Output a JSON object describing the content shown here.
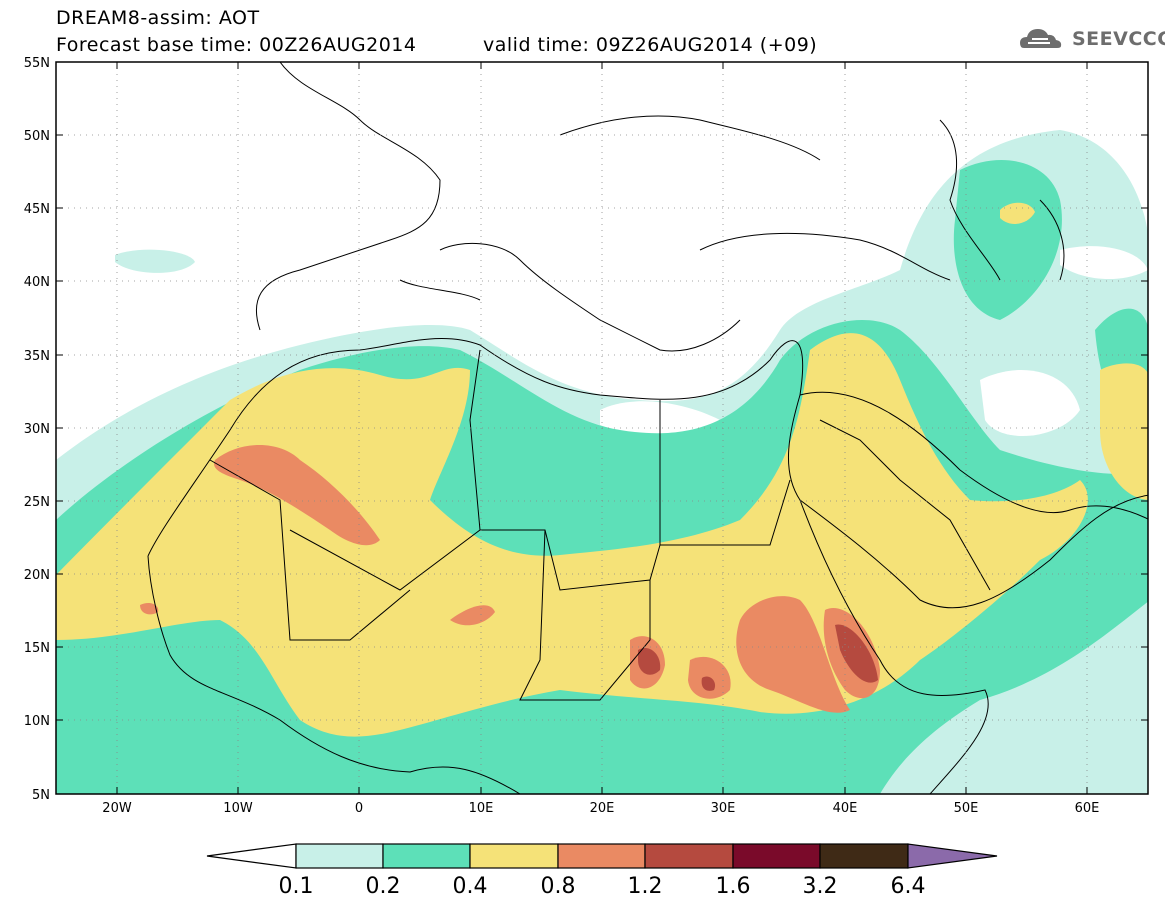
{
  "header": {
    "line1": "DREAM8-assim: AOT",
    "line2": "Forecast base time: 00Z26AUG2014",
    "line3": "valid time: 09Z26AUG2014 (+09)"
  },
  "logo": {
    "text": "SEEVCCC"
  },
  "map": {
    "lon_range": [
      -25,
      65
    ],
    "lat_range": [
      5,
      55
    ],
    "lat_labels": [
      "55N",
      "50N",
      "45N",
      "40N",
      "35N",
      "30N",
      "25N",
      "20N",
      "15N",
      "10N",
      "5N"
    ],
    "lon_labels": [
      "20W",
      "10W",
      "0",
      "10E",
      "20E",
      "30E",
      "40E",
      "50E",
      "60E"
    ]
  },
  "colorbar": {
    "ticks": [
      "0.1",
      "0.2",
      "0.4",
      "0.8",
      "1.2",
      "1.6",
      "3.2",
      "6.4"
    ],
    "colors": [
      "#ffffff",
      "#c8f0e8",
      "#5de0b8",
      "#f5e278",
      "#ea8a63",
      "#b54a3f",
      "#7a0a2a",
      "#3f2a16",
      "#8b6aaa"
    ]
  }
}
